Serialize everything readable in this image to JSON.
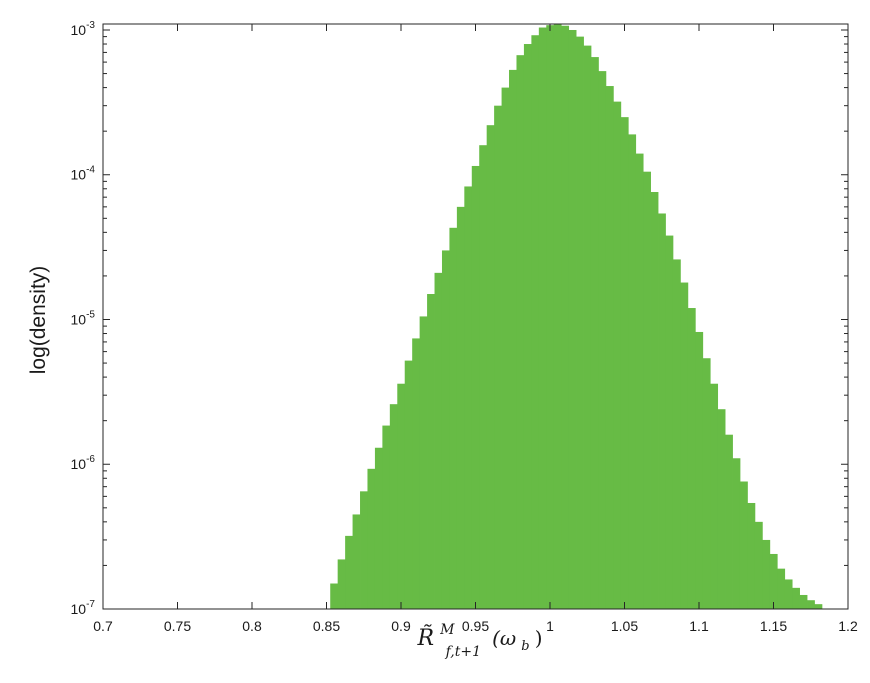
{
  "chart_data": {
    "type": "bar",
    "title": "",
    "ylabel": "log(density)",
    "xlabel": {
      "symbol": "R̃",
      "superscript": "M",
      "subscript": "f,t+1",
      "argument": "(ω",
      "argument_subscript": "b",
      "argument_close": ")"
    },
    "xlim": [
      0.7,
      1.2
    ],
    "ylim": [
      1e-07,
      0.0011
    ],
    "yscale": "log",
    "grid": false,
    "legend": "none",
    "bar_color": "#67bb45",
    "x_ticks": [
      0.7,
      0.75,
      0.8,
      0.85,
      0.9,
      0.95,
      1.0,
      1.05,
      1.1,
      1.15,
      1.2
    ],
    "x_tick_labels": [
      "0.7",
      "0.75",
      "0.8",
      "0.85",
      "0.9",
      "0.95",
      "1",
      "1.05",
      "1.1",
      "1.15",
      "1.2"
    ],
    "y_ticks": [
      {
        "base": "10",
        "exp": "-7"
      },
      {
        "base": "10",
        "exp": "-6"
      },
      {
        "base": "10",
        "exp": "-5"
      },
      {
        "base": "10",
        "exp": "-4"
      },
      {
        "base": "10",
        "exp": "-3"
      }
    ],
    "x": [
      0.855,
      0.86,
      0.865,
      0.87,
      0.875,
      0.88,
      0.885,
      0.89,
      0.895,
      0.9,
      0.905,
      0.91,
      0.915,
      0.92,
      0.925,
      0.93,
      0.935,
      0.94,
      0.945,
      0.95,
      0.955,
      0.96,
      0.965,
      0.97,
      0.975,
      0.98,
      0.985,
      0.99,
      0.995,
      1.0,
      1.005,
      1.01,
      1.015,
      1.02,
      1.025,
      1.03,
      1.035,
      1.04,
      1.045,
      1.05,
      1.055,
      1.06,
      1.065,
      1.07,
      1.075,
      1.08,
      1.085,
      1.09,
      1.095,
      1.1,
      1.105,
      1.11,
      1.115,
      1.12,
      1.125,
      1.13,
      1.135,
      1.14,
      1.145,
      1.15,
      1.155,
      1.16,
      1.165,
      1.17,
      1.175,
      1.18
    ],
    "values": [
      1.5e-07,
      2.2e-07,
      3.2e-07,
      4.5e-07,
      6.5e-07,
      9.3e-07,
      1.3e-06,
      1.85e-06,
      2.6e-06,
      3.6e-06,
      5.2e-06,
      7.4e-06,
      1.05e-05,
      1.5e-05,
      2.1e-05,
      3e-05,
      4.3e-05,
      6e-05,
      8.3e-05,
      0.000115,
      0.00016,
      0.00022,
      0.0003,
      0.0004,
      0.00053,
      0.00067,
      0.0008,
      0.00092,
      0.00104,
      0.00108,
      0.0011,
      0.00107,
      0.001,
      0.0009,
      0.00078,
      0.00065,
      0.00052,
      0.00041,
      0.00032,
      0.00025,
      0.00019,
      0.00014,
      0.000105,
      7.6e-05,
      5.4e-05,
      3.8e-05,
      2.6e-05,
      1.8e-05,
      1.2e-05,
      8.2e-06,
      5.4e-06,
      3.6e-06,
      2.4e-06,
      1.6e-06,
      1.1e-06,
      7.6e-07,
      5.4e-07,
      4e-07,
      3e-07,
      2.4e-07,
      1.9e-07,
      1.6e-07,
      1.4e-07,
      1.25e-07,
      1.15e-07,
      1.08e-07
    ]
  }
}
